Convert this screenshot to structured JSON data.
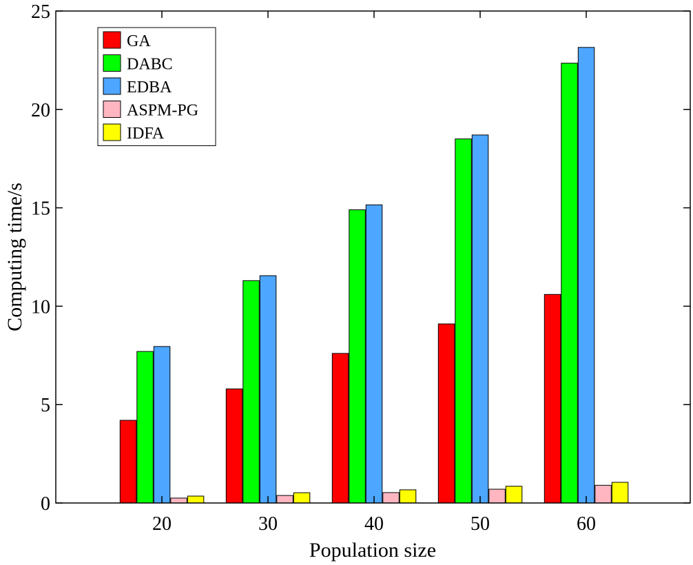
{
  "chart_data": {
    "type": "bar",
    "categories": [
      "20",
      "30",
      "40",
      "50",
      "60"
    ],
    "series": [
      {
        "name": "GA",
        "color": "#ff0000",
        "values": [
          4.2,
          5.8,
          7.6,
          9.1,
          10.6
        ]
      },
      {
        "name": "DABC",
        "color": "#00ff00",
        "values": [
          7.7,
          11.3,
          14.9,
          18.5,
          22.35
        ]
      },
      {
        "name": "EDBA",
        "color": "#4da6ff",
        "values": [
          7.95,
          11.55,
          15.15,
          18.7,
          23.15
        ]
      },
      {
        "name": "ASPM-PG",
        "color": "#ffb6c1",
        "values": [
          0.25,
          0.38,
          0.53,
          0.7,
          0.9
        ]
      },
      {
        "name": "IDFA",
        "color": "#ffff00",
        "values": [
          0.35,
          0.52,
          0.67,
          0.85,
          1.05
        ]
      }
    ],
    "xlabel": "Population size",
    "ylabel": "Computing time/s",
    "ylim": [
      0,
      25
    ],
    "yticks": [
      0,
      5,
      10,
      15,
      20,
      25
    ],
    "grid": false,
    "legend": "top-left"
  }
}
